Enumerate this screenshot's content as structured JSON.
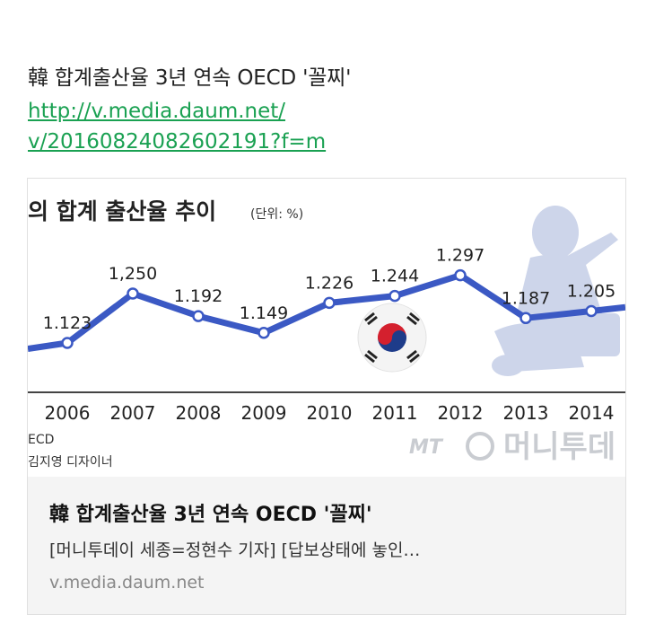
{
  "message": {
    "title": "韓 합계출산율 3년 연속 OECD '꼴찌'",
    "link_line1": "http://v.media.daum.net/",
    "link_line2": "v/20160824082602191?f=m"
  },
  "preview": {
    "title": "韓 합계출산율 3년 연속 OECD '꼴찌'",
    "description": "[머니투데이 세종=정현수 기자] [답보상태에 놓인…",
    "domain": "v.media.daum.net",
    "image": {
      "heading": "의 합계 출산율 추이",
      "unit_note": "(단위: %)",
      "source_text": "ECD",
      "designer_text": "김지영 디자이너",
      "watermark_logo": "MT",
      "watermark_text": "머니투데"
    }
  },
  "chart_data": {
    "type": "line",
    "title": "의 합계 출산율 추이",
    "x": [
      "2006",
      "2007",
      "2008",
      "2009",
      "2010",
      "2011",
      "2012",
      "2013",
      "2014"
    ],
    "series": [
      {
        "values": [
          1.123,
          1.25,
          1.192,
          1.149,
          1.226,
          1.244,
          1.297,
          1.187,
          1.205
        ]
      }
    ],
    "data_labels": [
      "1.123",
      "1,250",
      "1.192",
      "1.149",
      "1.226",
      "1.244",
      "1.297",
      "1.187",
      "1.205"
    ],
    "ylim": [
      1.0,
      1.35
    ],
    "grid": false,
    "colors": {
      "line": "#3b59c4",
      "axis": "#444444",
      "silhouette": "#cdd5ea"
    }
  }
}
